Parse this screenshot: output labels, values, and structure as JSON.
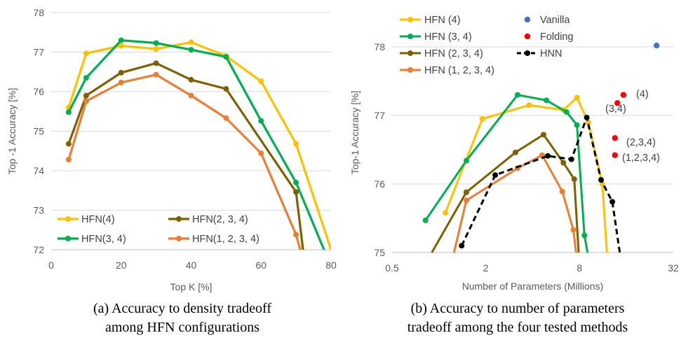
{
  "colors": {
    "yellow": "#FFC000",
    "green": "#00B050",
    "olive": "#7F6000",
    "orange": "#ED7D31",
    "black": "#000000",
    "blue": "#4472C4",
    "red": "#FF0000",
    "grid": "#D9D9D9",
    "axis": "#BFBFBF"
  },
  "captions": {
    "a_line1": "(a) Accuracy to density tradeoff",
    "a_line2": "among HFN configurations",
    "b_line1": "(b) Accuracy to number of parameters",
    "b_line2": "tradeoff among the four tested methods"
  },
  "chart_data": [
    {
      "id": "a",
      "type": "line",
      "xlabel": "Top K [%]",
      "ylabel": "Top -1 Accuracy [%]",
      "xlim": [
        0,
        80
      ],
      "ylim": [
        72,
        78
      ],
      "xticks": [
        0,
        20,
        40,
        60,
        80
      ],
      "yticks": [
        72,
        73,
        74,
        75,
        76,
        77,
        78
      ],
      "grid": "horizontal",
      "legend": "bottom",
      "series": [
        {
          "name": "HFN(4)",
          "color": "#FFC000",
          "x": [
            5,
            10,
            20,
            30,
            40,
            50,
            60,
            70,
            80
          ],
          "y": [
            75.6,
            76.97,
            77.16,
            77.08,
            77.25,
            76.9,
            76.26,
            74.68,
            72.0
          ]
        },
        {
          "name": "HFN(3, 4)",
          "color": "#00B050",
          "x": [
            5,
            10,
            20,
            30,
            40,
            50,
            60,
            70,
            78
          ],
          "y": [
            75.48,
            76.35,
            77.3,
            77.23,
            77.06,
            76.88,
            75.26,
            73.7,
            72.0
          ]
        },
        {
          "name": "HFN(2, 3, 4)",
          "color": "#7F6000",
          "x": [
            5,
            10,
            20,
            30,
            40,
            50,
            70,
            72
          ],
          "y": [
            74.68,
            75.9,
            76.48,
            76.72,
            76.3,
            76.07,
            73.46,
            72.0
          ]
        },
        {
          "name": "HFN(1, 2, 3, 4)",
          "color": "#ED7D31",
          "x": [
            5,
            10,
            20,
            30,
            40,
            50,
            60,
            70,
            71.2
          ],
          "y": [
            74.28,
            75.76,
            76.23,
            76.43,
            75.9,
            75.33,
            74.44,
            72.38,
            72.0
          ]
        }
      ]
    },
    {
      "id": "b",
      "type": "line",
      "xlabel": "Number of Parameters (Millions)",
      "ylabel": "Top-1 Accuracy [%]",
      "xscale": "log2",
      "xlim": [
        0.5,
        32
      ],
      "ylim": [
        75,
        78.5
      ],
      "xticks": [
        0.5,
        2,
        8,
        32
      ],
      "xtick_labels": [
        "0.5",
        "2",
        "8",
        "32"
      ],
      "yticks": [
        75,
        76,
        77,
        78
      ],
      "grid": "horizontal",
      "legend": "top-left",
      "series": [
        {
          "name": "HFN (4)",
          "color": "#FFC000",
          "marker": "circle",
          "x": [
            1.1,
            1.9,
            3.8,
            6.3,
            7.7,
            9.1,
            11.2,
            12.0
          ],
          "y": [
            75.58,
            76.95,
            77.15,
            77.08,
            77.26,
            76.9,
            76.0,
            75.0
          ]
        },
        {
          "name": "HFN (3, 4)",
          "color": "#00B050",
          "marker": "circle",
          "x": [
            0.82,
            1.5,
            3.2,
            4.9,
            6.6,
            7.7,
            8.6,
            9.0
          ],
          "y": [
            75.47,
            76.34,
            77.3,
            77.22,
            77.05,
            76.86,
            75.25,
            75.0
          ]
        },
        {
          "name": "HFN (2, 3, 4)",
          "color": "#7F6000",
          "marker": "circle",
          "x": [
            0.9,
            1.5,
            3.1,
            4.7,
            6.3,
            7.4,
            7.9
          ],
          "y": [
            75.0,
            75.88,
            76.46,
            76.72,
            76.31,
            76.07,
            75.0
          ]
        },
        {
          "name": "HFN (1, 2, 3, 4)",
          "color": "#ED7D31",
          "marker": "circle",
          "x": [
            1.25,
            1.5,
            3.2,
            4.6,
            6.2,
            7.3,
            7.6
          ],
          "y": [
            75.0,
            75.76,
            76.23,
            76.42,
            75.89,
            75.33,
            75.0
          ]
        },
        {
          "name": "HNN",
          "color": "#000000",
          "marker": "circle",
          "dash": true,
          "x": [
            1.4,
            2.3,
            5.0,
            7.1,
            8.9,
            11.0,
            13.0,
            14.5
          ],
          "y": [
            75.1,
            76.13,
            76.41,
            76.36,
            76.97,
            76.06,
            75.74,
            75.0
          ]
        },
        {
          "name": "Vanilla",
          "color": "#4472C4",
          "marker": "dot",
          "x": [
            25.0
          ],
          "y": [
            78.02
          ]
        },
        {
          "name": "Folding",
          "color": "#FF0000",
          "marker": "dot",
          "x": [
            15.3,
            14.0,
            13.5,
            13.5
          ],
          "y": [
            77.3,
            77.18,
            76.67,
            76.42
          ],
          "labels": [
            "(4)",
            "(3,4)",
            "(2,3,4)",
            "(1,2,3,4)"
          ]
        }
      ]
    }
  ]
}
